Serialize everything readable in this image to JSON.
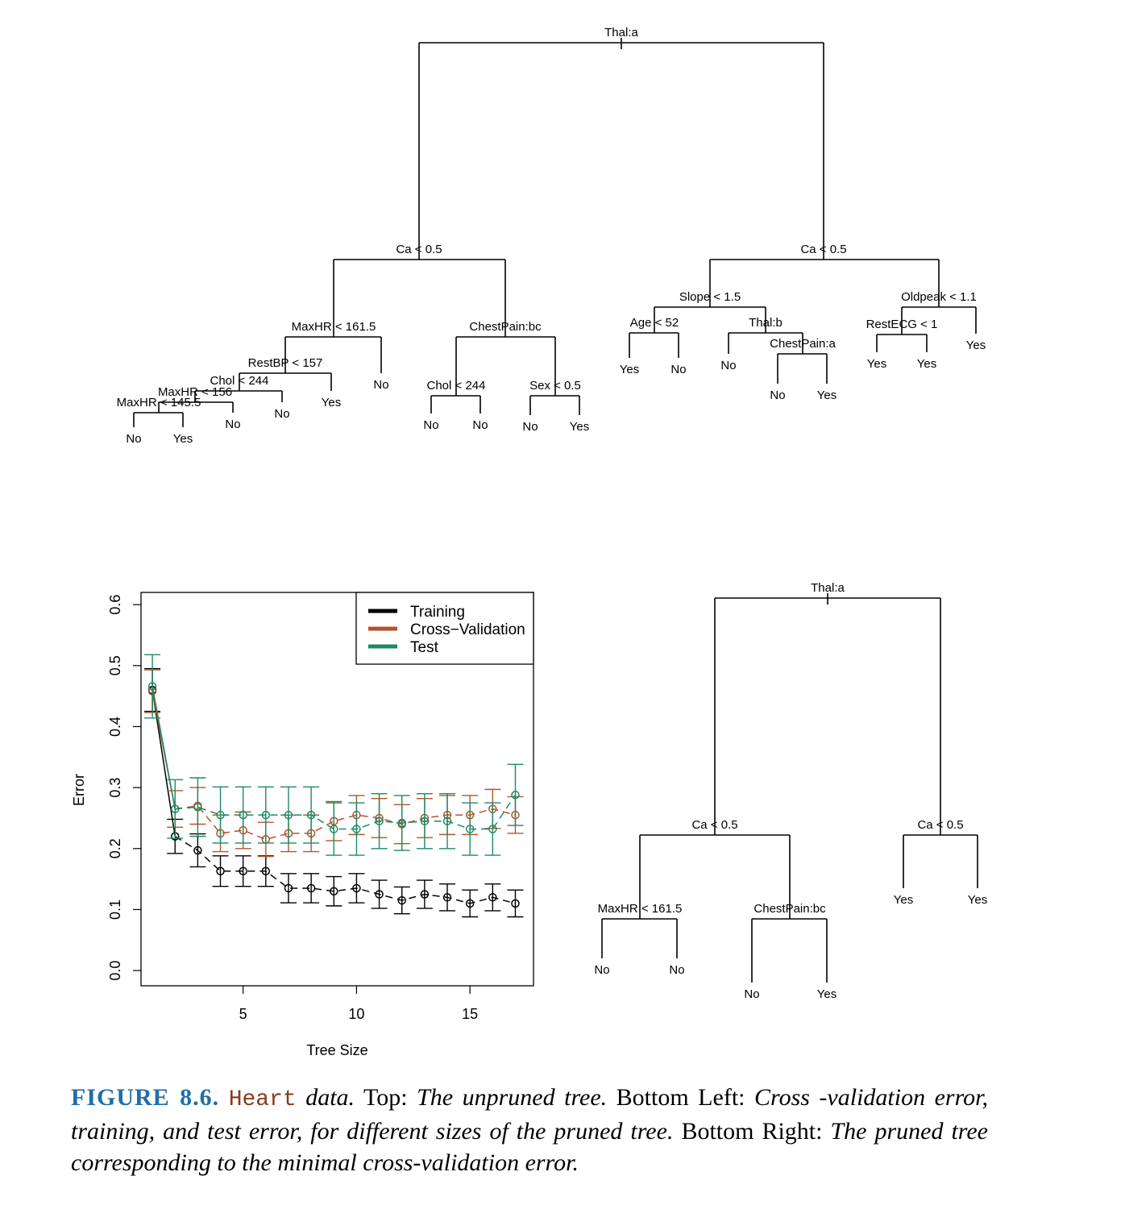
{
  "unpruned_tree": {
    "nodes": {
      "root": {
        "label": "Thal:a",
        "children": [
          "L",
          "R"
        ]
      },
      "L": {
        "label": "Ca < 0.5",
        "children": [
          "LL",
          "LR"
        ]
      },
      "LL": {
        "label": "MaxHR < 161.5",
        "children": [
          "LLL",
          "LLR"
        ]
      },
      "LLL": {
        "label": "RestBP < 157",
        "children": [
          "LLLL",
          "LLLR"
        ]
      },
      "LLLL": {
        "label": "Chol < 244",
        "children": [
          "LLLLL",
          "LLLLR"
        ]
      },
      "LLLLL": {
        "label": "MaxHR < 156",
        "children": [
          "LLLLLL",
          "LLLLLR"
        ]
      },
      "LLLLLL": {
        "label": "MaxHR < 145.5",
        "children": [
          "n1",
          "n2"
        ]
      },
      "n1": {
        "label": "No"
      },
      "n2": {
        "label": "Yes"
      },
      "LLLLLR": {
        "label": "No"
      },
      "LLLLR": {
        "label": "No"
      },
      "LLLR": {
        "label": "Yes"
      },
      "LLR": {
        "label": "No"
      },
      "LR": {
        "label": "ChestPain:bc",
        "children": [
          "LRL",
          "LRR"
        ]
      },
      "LRL": {
        "label": "Chol < 244",
        "children": [
          "n3",
          "n4"
        ]
      },
      "n3": {
        "label": "No"
      },
      "n4": {
        "label": "No"
      },
      "LRR": {
        "label": "Sex < 0.5",
        "children": [
          "n5",
          "n6"
        ]
      },
      "n5": {
        "label": "No"
      },
      "n6": {
        "label": "Yes"
      },
      "R": {
        "label": "Ca < 0.5",
        "children": [
          "RL",
          "RR"
        ]
      },
      "RL": {
        "label": "Slope < 1.5",
        "children": [
          "RLL",
          "RLR"
        ]
      },
      "RLL": {
        "label": "Age < 52",
        "children": [
          "n7",
          "n8"
        ]
      },
      "n7": {
        "label": "Yes"
      },
      "n8": {
        "label": "No"
      },
      "RLR": {
        "label": "Thal:b",
        "children": [
          "n9",
          "RLRR"
        ]
      },
      "n9": {
        "label": "No"
      },
      "RLRR": {
        "label": "ChestPain:a",
        "children": [
          "n10",
          "n11"
        ]
      },
      "n10": {
        "label": "No"
      },
      "n11": {
        "label": "Yes"
      },
      "RR": {
        "label": "Oldpeak < 1.1",
        "children": [
          "RRL",
          "n12"
        ]
      },
      "RRL": {
        "label": "RestECG < 1",
        "children": [
          "n13",
          "n14"
        ]
      },
      "n13": {
        "label": "Yes"
      },
      "n14": {
        "label": "Yes"
      },
      "n12": {
        "label": "Yes"
      }
    }
  },
  "pruned_tree": {
    "nodes": {
      "root": {
        "label": "Thal:a",
        "children": [
          "L",
          "R"
        ]
      },
      "L": {
        "label": "Ca < 0.5",
        "children": [
          "LL",
          "LR"
        ]
      },
      "LL": {
        "label": "MaxHR < 161.5",
        "children": [
          "a",
          "b"
        ]
      },
      "a": {
        "label": "No"
      },
      "b": {
        "label": "No"
      },
      "LR": {
        "label": "ChestPain:bc",
        "children": [
          "c",
          "d"
        ]
      },
      "c": {
        "label": "No"
      },
      "d": {
        "label": "Yes"
      },
      "R": {
        "label": "Ca < 0.5",
        "children": [
          "e",
          "f"
        ]
      },
      "e": {
        "label": "Yes"
      },
      "f": {
        "label": "Yes"
      }
    }
  },
  "chart_data": {
    "type": "line",
    "xlabel": "Tree Size",
    "ylabel": "Error",
    "xlim": [
      0.5,
      17.8
    ],
    "ylim": [
      -0.025,
      0.62
    ],
    "x_ticks": [
      5,
      10,
      15
    ],
    "y_ticks": [
      0.0,
      0.1,
      0.2,
      0.3,
      0.4,
      0.5,
      0.6
    ],
    "legend_position": "top-right",
    "x": [
      1,
      2,
      3,
      4,
      5,
      6,
      7,
      8,
      9,
      10,
      11,
      12,
      13,
      14,
      15,
      16,
      17
    ],
    "series": [
      {
        "name": "Training",
        "color": "#000000",
        "line": "dashed",
        "values": [
          0.46,
          0.22,
          0.197,
          0.163,
          0.163,
          0.163,
          0.135,
          0.135,
          0.13,
          0.135,
          0.125,
          0.115,
          0.125,
          0.12,
          0.11,
          0.12,
          0.11
        ],
        "err": [
          0.035,
          0.028,
          0.027,
          0.025,
          0.025,
          0.025,
          0.024,
          0.024,
          0.024,
          0.024,
          0.023,
          0.022,
          0.023,
          0.022,
          0.022,
          0.022,
          0.022
        ]
      },
      {
        "name": "Cross−Validation",
        "color": "#b5532a",
        "line": "dashed",
        "values": [
          0.458,
          0.265,
          0.27,
          0.225,
          0.23,
          0.215,
          0.225,
          0.225,
          0.245,
          0.255,
          0.25,
          0.24,
          0.25,
          0.255,
          0.255,
          0.265,
          0.255
        ],
        "err": [
          0.035,
          0.03,
          0.03,
          0.03,
          0.03,
          0.028,
          0.03,
          0.03,
          0.032,
          0.032,
          0.032,
          0.032,
          0.032,
          0.032,
          0.032,
          0.032,
          0.03
        ]
      },
      {
        "name": "Test",
        "color": "#1b8a66",
        "line": "dashed",
        "values": [
          0.466,
          0.265,
          0.268,
          0.255,
          0.255,
          0.255,
          0.255,
          0.255,
          0.232,
          0.232,
          0.245,
          0.242,
          0.245,
          0.245,
          0.232,
          0.232,
          0.288
        ],
        "err": [
          0.052,
          0.048,
          0.048,
          0.046,
          0.046,
          0.046,
          0.046,
          0.046,
          0.043,
          0.043,
          0.045,
          0.045,
          0.045,
          0.045,
          0.043,
          0.043,
          0.05
        ]
      }
    ]
  },
  "caption": {
    "label": "FIGURE 8.6.",
    "dataset": "Heart",
    "text_1": " data.",
    "top_label": " Top: ",
    "top_text": "The unpruned tree.",
    "bottom_left_label": " Bottom Left: ",
    "bottom_left_text": "Cross -validation error, training, and test error, for different sizes of the pruned tree.",
    "bottom_right_label": " Bottom Right: ",
    "bottom_right_text": "The pruned tree corresponding to the minimal cross-validation error."
  }
}
